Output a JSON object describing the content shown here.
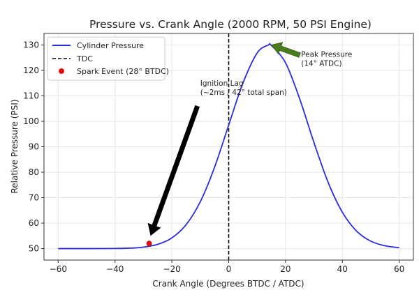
{
  "chart_data": {
    "type": "line",
    "title": "Pressure vs. Crank Angle (2000 RPM, 50 PSI Engine)",
    "xlabel": "Crank Angle (Degrees BTDC / ATDC)",
    "ylabel": "Relative Pressure (PSI)",
    "xlim": [
      -65,
      65
    ],
    "ylim": [
      45.5,
      134.5
    ],
    "xticks": [
      -60,
      -40,
      -20,
      0,
      20,
      40,
      60
    ],
    "yticks": [
      50,
      60,
      70,
      80,
      90,
      100,
      110,
      120,
      130
    ],
    "grid": true,
    "legend_position": "top-left",
    "series": [
      {
        "name": "Cylinder Pressure",
        "color": "#2b2bdc",
        "x": [
          -60,
          -55,
          -50,
          -45,
          -40,
          -35,
          -30,
          -25,
          -20,
          -15,
          -10,
          -5,
          0,
          5,
          10,
          14,
          15,
          20,
          25,
          30,
          35,
          40,
          45,
          50,
          55,
          60
        ],
        "y": [
          50.0,
          50.0,
          50.0,
          50.01,
          50.05,
          50.17,
          50.57,
          51.65,
          54.19,
          59.37,
          68.4,
          81.87,
          98.52,
          114.99,
          126.8,
          130.0,
          129.8,
          122.98,
          108.75,
          91.66,
          76.0,
          64.27,
          56.88,
          52.93,
          51.1,
          50.36
        ]
      }
    ],
    "vline": {
      "name": "TDC",
      "x": 0,
      "color": "#000000",
      "style": "dashed"
    },
    "points": [
      {
        "name": "Spark Event (28° BTDC)",
        "x": -28,
        "y": 52,
        "color": "#dd1111"
      }
    ],
    "annotations": [
      {
        "lines": [
          "Ignition Lag",
          "(~2ms / 42° total span)"
        ],
        "text_at": [
          -10,
          114
        ],
        "arrow_from": [
          -11,
          106
        ],
        "arrow_to": [
          -27.5,
          55
        ],
        "arrow_color": "#000000"
      },
      {
        "lines": [
          "Peak Pressure",
          "(14° ATDC)"
        ],
        "text_at": [
          25,
          127
        ],
        "arrow_from": [
          25,
          126
        ],
        "arrow_to": [
          15,
          130
        ],
        "arrow_color": "#4a7a1e"
      }
    ]
  }
}
